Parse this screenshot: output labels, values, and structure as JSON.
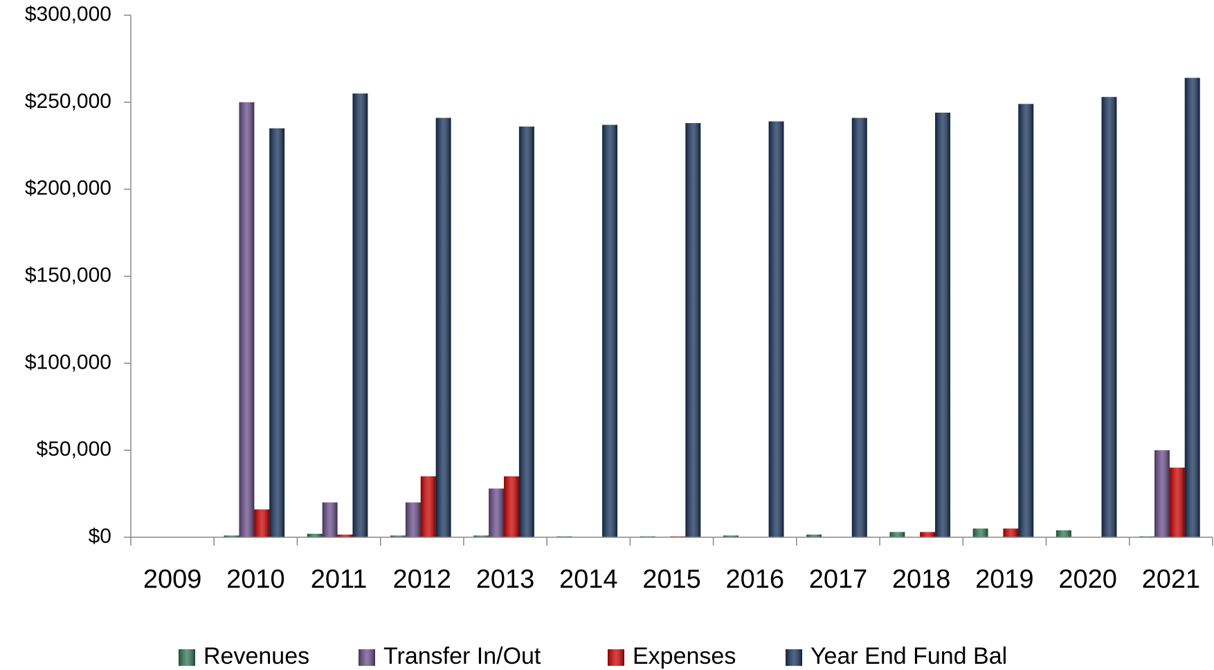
{
  "chart_data": {
    "type": "bar",
    "categories": [
      "2009",
      "2010",
      "2011",
      "2012",
      "2013",
      "2014",
      "2015",
      "2016",
      "2017",
      "2018",
      "2019",
      "2020",
      "2021"
    ],
    "series": [
      {
        "name": "Revenues",
        "color": "#2f7a55",
        "values": [
          0,
          1000,
          2000,
          1000,
          1000,
          500,
          500,
          1000,
          1500,
          3000,
          5000,
          4000,
          500
        ]
      },
      {
        "name": "Transfer In/Out",
        "color": "#6a4e8c",
        "values": [
          0,
          250000,
          20000,
          20000,
          28000,
          0,
          0,
          0,
          0,
          0,
          0,
          0,
          50000
        ]
      },
      {
        "name": "Expenses",
        "color": "#d10000",
        "values": [
          0,
          16000,
          1500,
          35000,
          35000,
          0,
          500,
          0,
          0,
          3000,
          5000,
          0,
          40000
        ]
      },
      {
        "name": "Year End Fund Bal",
        "color": "#18335c",
        "values": [
          0,
          235000,
          255000,
          241000,
          236000,
          237000,
          238000,
          239000,
          241000,
          244000,
          249000,
          253000,
          264000
        ]
      }
    ],
    "ylim": [
      0,
      300000
    ],
    "yticks": [
      {
        "value": 0,
        "label": "$0"
      },
      {
        "value": 50000,
        "label": "$50,000"
      },
      {
        "value": 100000,
        "label": "$100,000"
      },
      {
        "value": 150000,
        "label": "$150,000"
      },
      {
        "value": 200000,
        "label": "$200,000"
      },
      {
        "value": 250000,
        "label": "$250,000"
      },
      {
        "value": 300000,
        "label": "$300,000"
      }
    ],
    "grid": false,
    "legend": "bottom"
  }
}
